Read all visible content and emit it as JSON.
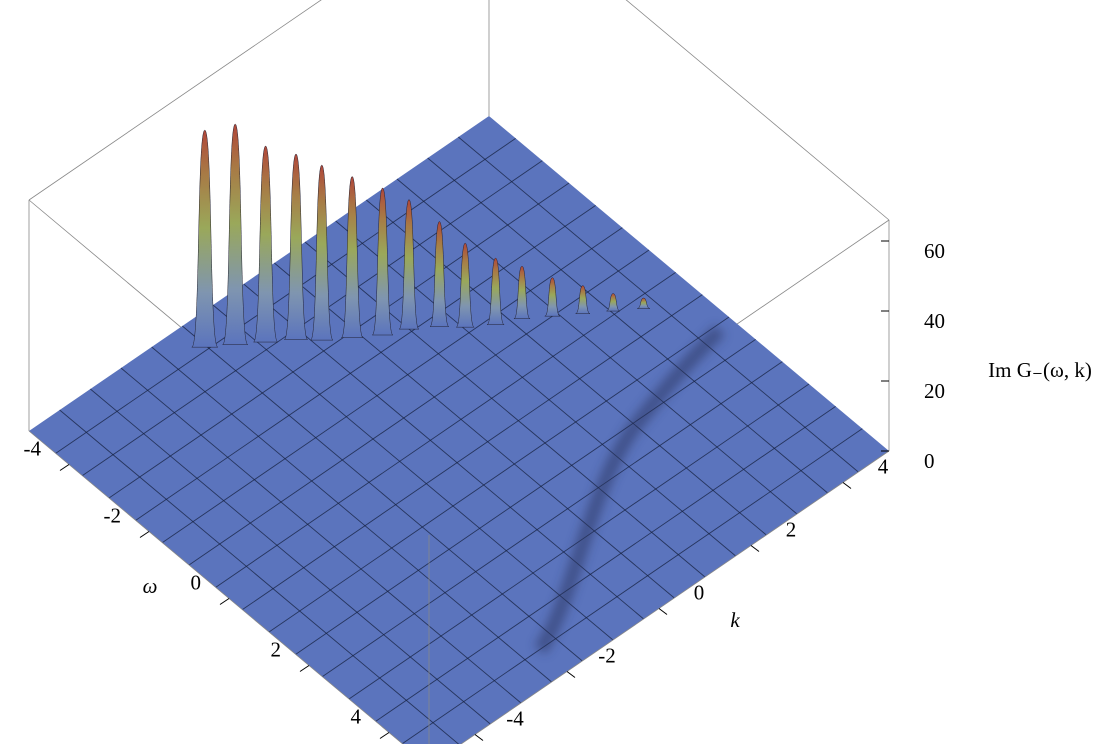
{
  "chart_data": {
    "type": "surface3d",
    "x_label": "ω",
    "y_label": "k",
    "z_label": "Im G₋(ω, k)",
    "xlim": [
      -5,
      5
    ],
    "xticks": [
      -4,
      -2,
      0,
      2,
      4
    ],
    "ylim": [
      -5,
      5
    ],
    "yticks": [
      -4,
      -2,
      0,
      2,
      4
    ],
    "zlim": [
      0,
      66
    ],
    "zticks": [
      0,
      20,
      40,
      60
    ],
    "surface_color": "#5b74bd",
    "peaks": {
      "omega": [
        -4.4,
        -4.1,
        -3.8,
        -3.5,
        -3.2,
        -2.9,
        -2.6,
        -2.4,
        -2.1,
        -1.8,
        -1.5,
        -1.3,
        -1.0,
        -0.7,
        -0.4,
        -0.1
      ],
      "k": [
        -1.7,
        -1.3,
        -0.9,
        -0.5,
        -0.2,
        0.2,
        0.6,
        1.0,
        1.4,
        1.7,
        2.1,
        2.5,
        2.9,
        3.3,
        3.7,
        4.1
      ],
      "values": [
        62,
        63,
        56,
        53,
        50,
        46,
        42,
        37,
        30,
        24,
        19,
        15,
        11,
        8,
        5,
        3
      ]
    }
  }
}
